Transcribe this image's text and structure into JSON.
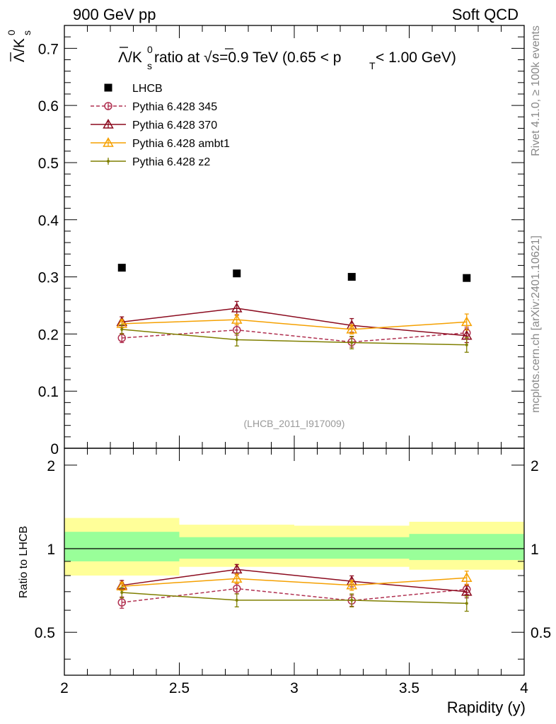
{
  "header": {
    "left": "900 GeV pp",
    "right": "Soft QCD"
  },
  "side_labels": {
    "rivet": "Rivet 4.1.0, ≥ 100k events",
    "mcplots": "mcplots.cern.ch [arXiv:2401.10621]"
  },
  "watermark": "(LHCB_2011_I917009)",
  "chart_data": [
    {
      "panel": "main",
      "type": "scatter",
      "title_parts": {
        "lambda_bar": "Λ",
        "slash_k": "/K",
        "k_sub": "s",
        "k_sup": "0",
        "ratio_at": " ratio at ",
        "sqrt": "√s",
        "energy": "=0.9 TeV (0.65 < p",
        "pt_sub": "T",
        "range_end": " < 1.00 GeV)"
      },
      "ylabel_parts": {
        "lambda_bar": "Λ",
        "slash_k": "/K",
        "k_sub": "s",
        "k_sup": "0"
      },
      "xlim": [
        2,
        4
      ],
      "ylim": [
        0,
        0.74
      ],
      "yticks": [
        "0",
        "0.1",
        "0.2",
        "0.3",
        "0.4",
        "0.5",
        "0.6",
        "0.7"
      ],
      "x": [
        2.25,
        2.75,
        3.25,
        3.75
      ],
      "series": [
        {
          "name": "LHCB",
          "color": "#000000",
          "marker": "square",
          "values": [
            0.316,
            0.306,
            0.3,
            0.298
          ],
          "errors": [
            0.002,
            0.002,
            0.002,
            0.002
          ]
        },
        {
          "name": "Pythia 6.428 345",
          "color": "#b03050",
          "marker": "circle",
          "dashed": true,
          "values": [
            0.193,
            0.207,
            0.186,
            0.202
          ],
          "errors": [
            0.008,
            0.009,
            0.009,
            0.01
          ]
        },
        {
          "name": "Pythia 6.428 370",
          "color": "#8b0a1e",
          "marker": "triangle",
          "values": [
            0.221,
            0.245,
            0.215,
            0.197
          ],
          "errors": [
            0.009,
            0.012,
            0.012,
            0.012
          ]
        },
        {
          "name": "Pythia 6.428 ambt1",
          "color": "#f5a000",
          "marker": "triangle",
          "values": [
            0.218,
            0.225,
            0.208,
            0.221
          ],
          "errors": [
            0.007,
            0.009,
            0.008,
            0.014
          ]
        },
        {
          "name": "Pythia 6.428 z2",
          "color": "#7f7f00",
          "marker": "dot",
          "values": [
            0.208,
            0.19,
            0.185,
            0.181
          ],
          "errors": [
            0.008,
            0.011,
            0.011,
            0.013
          ]
        }
      ]
    },
    {
      "panel": "ratio",
      "type": "scatter",
      "ylabel": "Ratio to LHCB",
      "xlabel": "Rapidity (y)",
      "xlim": [
        2,
        4
      ],
      "ylim": [
        0.35,
        2.3
      ],
      "yscale": "log",
      "yticks": [
        "0.5",
        "1",
        "2"
      ],
      "xticks": [
        "2",
        "2.5",
        "3",
        "3.5",
        "4"
      ],
      "reference_band": {
        "bins": [
          [
            2.0,
            2.5
          ],
          [
            2.5,
            3.0
          ],
          [
            3.0,
            3.5
          ],
          [
            3.5,
            4.0
          ]
        ],
        "inner_low": [
          0.9,
          0.92,
          0.92,
          0.91
        ],
        "inner_high": [
          1.15,
          1.1,
          1.1,
          1.13
        ],
        "outer_low": [
          0.8,
          0.86,
          0.86,
          0.84
        ],
        "outer_high": [
          1.29,
          1.22,
          1.21,
          1.25
        ],
        "inner_color": "#99ff99",
        "outer_color": "#ffff99"
      },
      "x": [
        2.25,
        2.75,
        3.25,
        3.75
      ],
      "series": [
        {
          "name": "Pythia 6.428 345",
          "color": "#b03050",
          "marker": "circle",
          "dashed": true,
          "values": [
            0.64,
            0.718,
            0.65,
            0.714
          ],
          "errors": [
            0.03,
            0.03,
            0.03,
            0.03
          ]
        },
        {
          "name": "Pythia 6.428 370",
          "color": "#8b0a1e",
          "marker": "triangle",
          "values": [
            0.738,
            0.842,
            0.763,
            0.7
          ],
          "errors": [
            0.03,
            0.035,
            0.035,
            0.035
          ]
        },
        {
          "name": "Pythia 6.428 ambt1",
          "color": "#f5a000",
          "marker": "triangle",
          "values": [
            0.732,
            0.78,
            0.738,
            0.785
          ],
          "errors": [
            0.025,
            0.03,
            0.03,
            0.045
          ]
        },
        {
          "name": "Pythia 6.428 z2",
          "color": "#7f7f00",
          "marker": "dot",
          "values": [
            0.695,
            0.652,
            0.652,
            0.635
          ],
          "errors": [
            0.03,
            0.035,
            0.035,
            0.04
          ]
        }
      ]
    }
  ]
}
